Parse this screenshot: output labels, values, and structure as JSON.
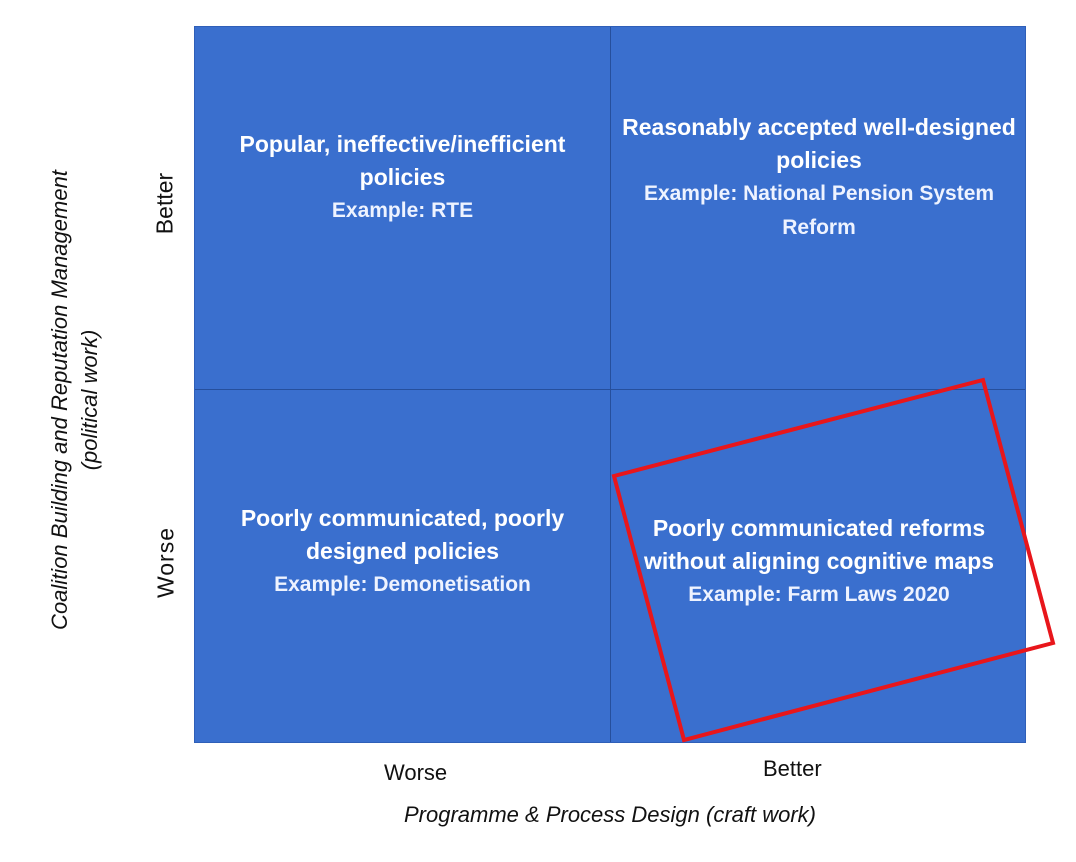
{
  "quadrants": {
    "top_left": {
      "title": "Popular, ineffective/inefficient policies",
      "example": "Example: RTE"
    },
    "top_right": {
      "title": "Reasonably accepted well-designed policies",
      "example": "Example: National Pension System Reform"
    },
    "bottom_left": {
      "title": "Poorly communicated, poorly designed policies",
      "example": "Example: Demonetisation"
    },
    "bottom_right": {
      "title": "Poorly communicated reforms without aligning cognitive maps",
      "example": "Example: Farm Laws 2020"
    }
  },
  "y_axis": {
    "title": "Coalition Building and Reputation Management",
    "subtitle": "(political work)",
    "ticks": [
      "Better",
      "Worse"
    ]
  },
  "x_axis": {
    "title": "Programme & Process Design (craft work)",
    "ticks": [
      "Worse",
      "Better"
    ]
  },
  "colors": {
    "quadrant_fill": "#3a6fce",
    "highlight": "#e8161b"
  }
}
